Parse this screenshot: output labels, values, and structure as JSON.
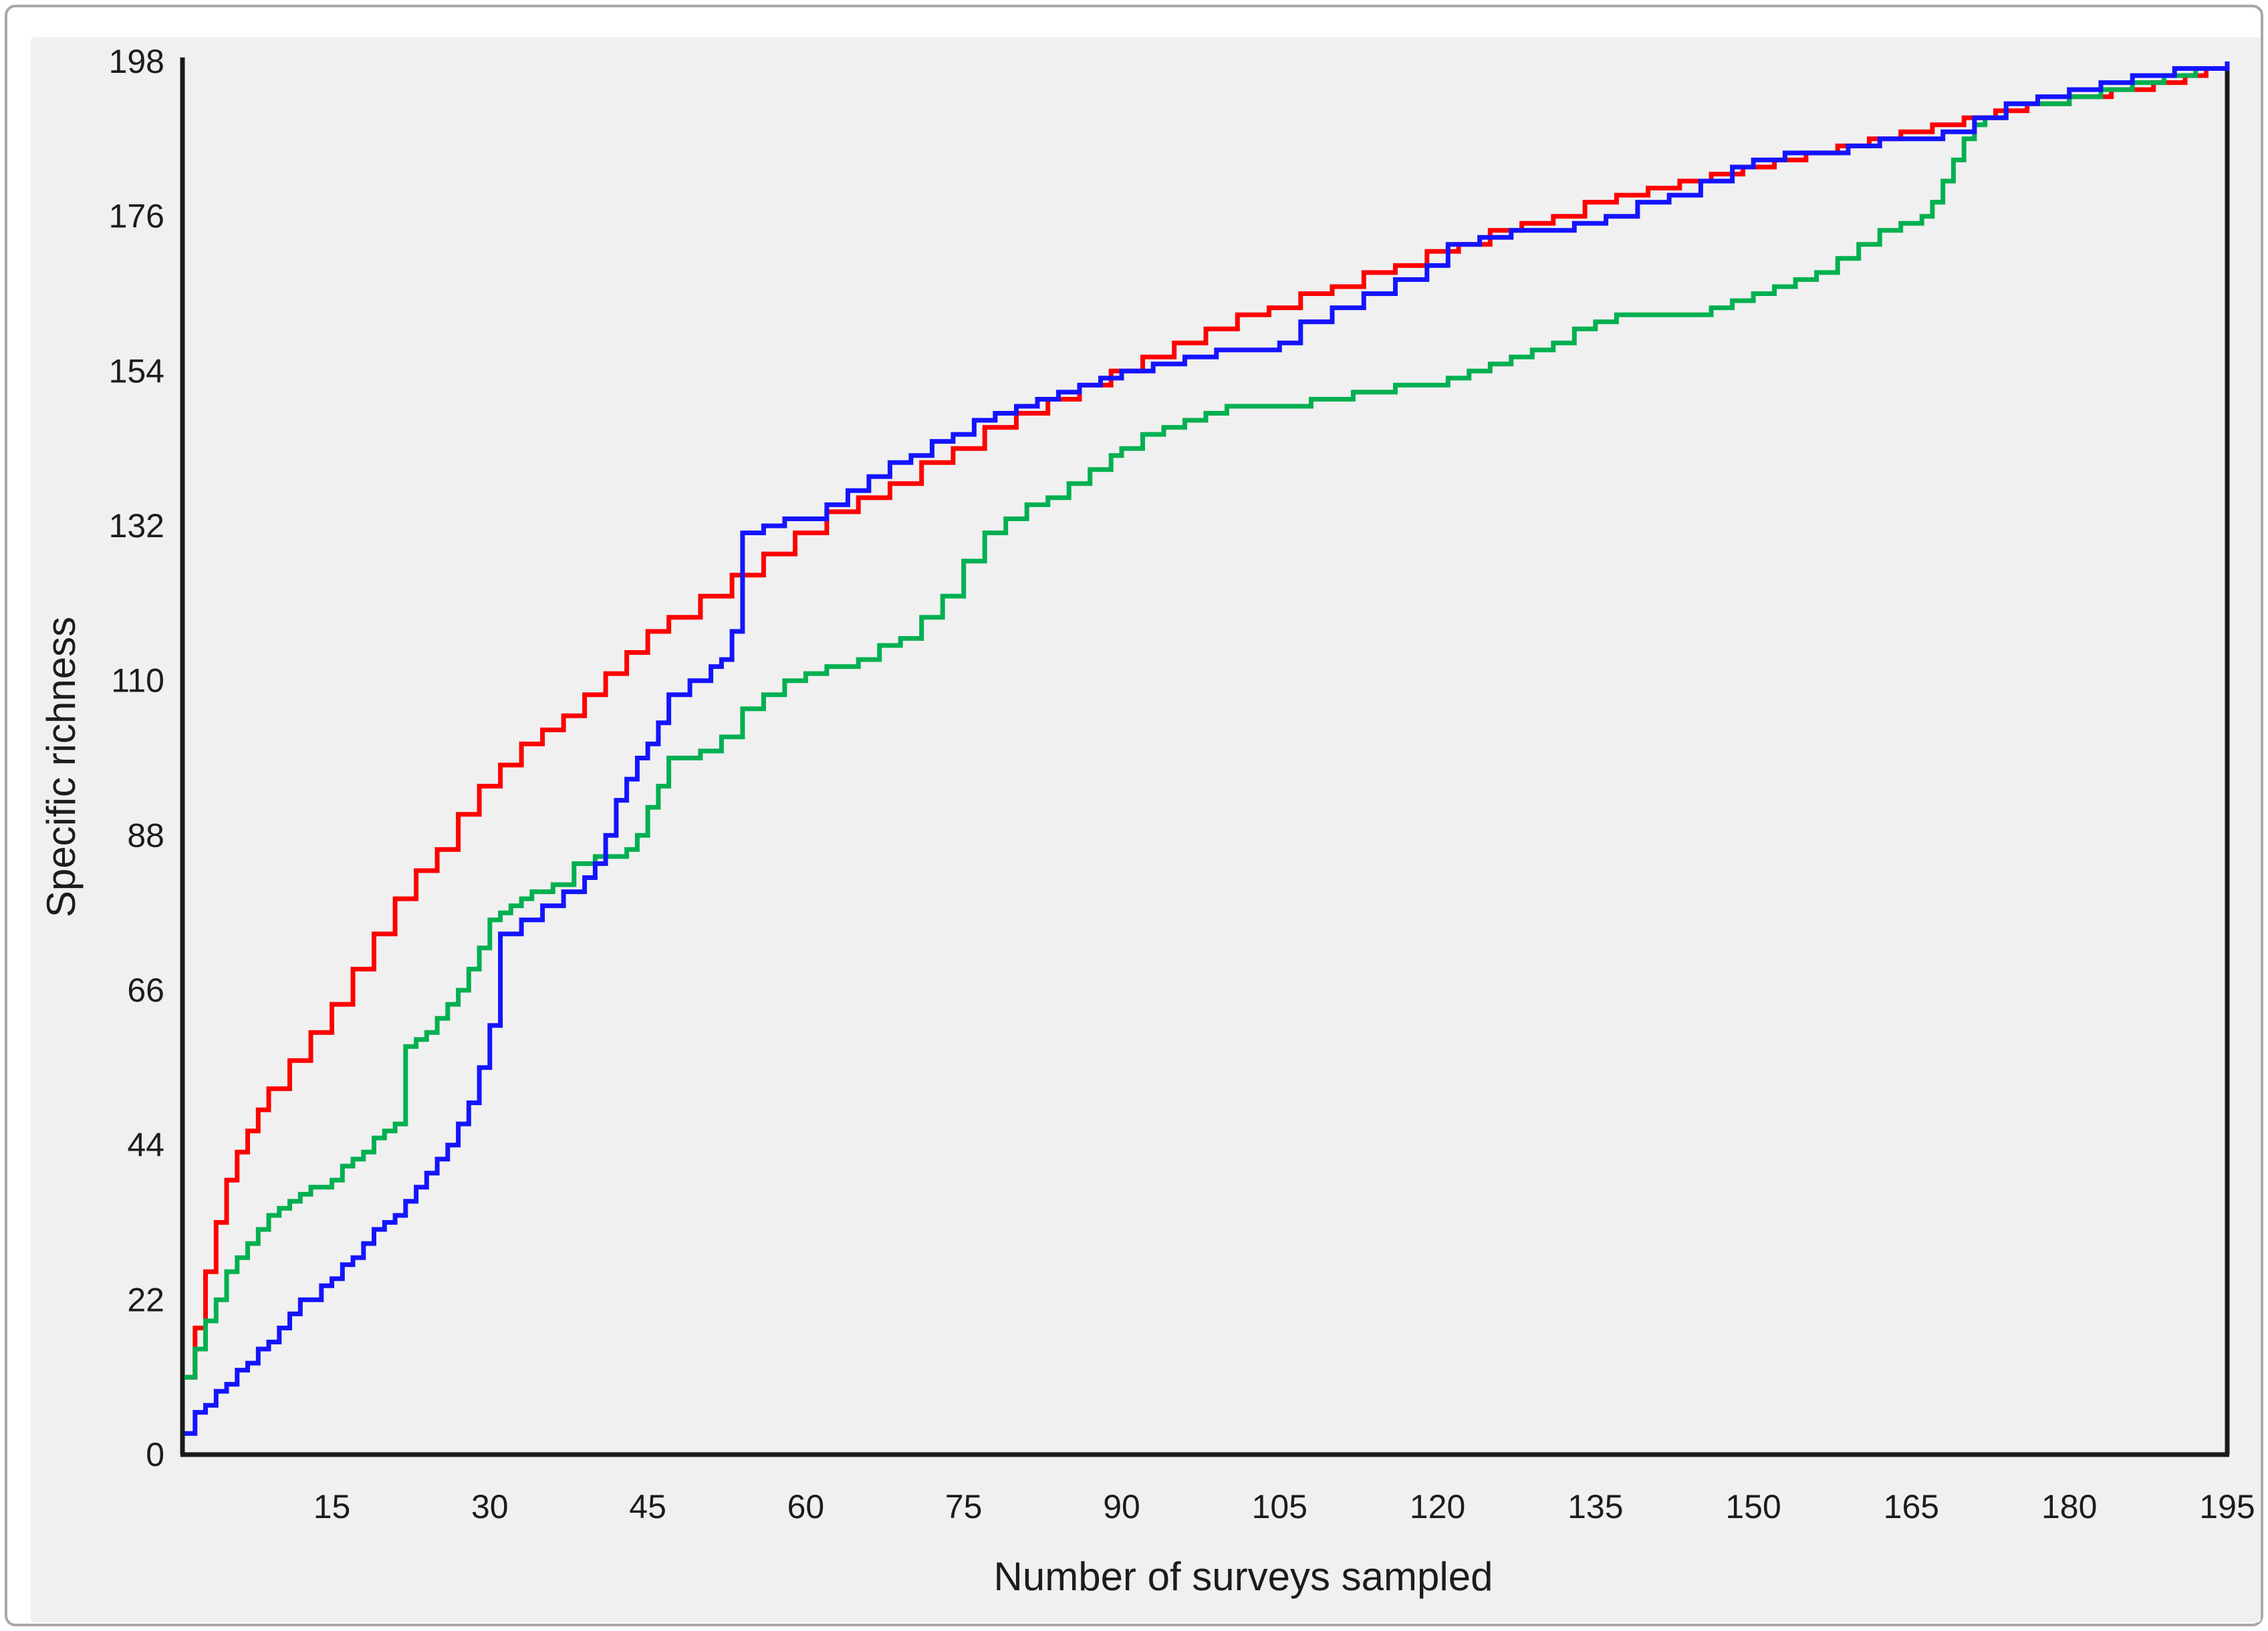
{
  "page": {
    "background": "#ffffff",
    "panel_background": "#f0f0f0",
    "panel_border_color": "#a9a9a9",
    "axis_color": "#1a1a1a",
    "text_color": "#1c1c1c"
  },
  "chart_data": {
    "type": "line",
    "subtype": "step-after",
    "title": "",
    "xlabel": "Number of surveys sampled",
    "ylabel": "Specific richness",
    "xlim": [
      1,
      195
    ],
    "ylim": [
      0,
      198
    ],
    "x_ticks": [
      15,
      30,
      45,
      60,
      75,
      90,
      105,
      120,
      135,
      150,
      165,
      180,
      195
    ],
    "y_ticks": [
      0,
      22,
      44,
      66,
      88,
      110,
      132,
      154,
      176,
      198
    ],
    "grid": false,
    "legend_position": "none",
    "series": [
      {
        "name": "red",
        "color": "#fe0000",
        "points": [
          [
            1,
            11
          ],
          [
            2,
            18
          ],
          [
            3,
            26
          ],
          [
            4,
            33
          ],
          [
            5,
            39
          ],
          [
            6,
            43
          ],
          [
            7,
            46
          ],
          [
            8,
            49
          ],
          [
            9,
            52
          ],
          [
            11,
            56
          ],
          [
            13,
            60
          ],
          [
            15,
            64
          ],
          [
            17,
            69
          ],
          [
            19,
            74
          ],
          [
            21,
            79
          ],
          [
            23,
            83
          ],
          [
            25,
            86
          ],
          [
            27,
            91
          ],
          [
            29,
            95
          ],
          [
            31,
            98
          ],
          [
            33,
            101
          ],
          [
            35,
            103
          ],
          [
            37,
            105
          ],
          [
            39,
            108
          ],
          [
            41,
            111
          ],
          [
            43,
            114
          ],
          [
            45,
            117
          ],
          [
            47,
            119
          ],
          [
            50,
            122
          ],
          [
            53,
            125
          ],
          [
            56,
            128
          ],
          [
            59,
            131
          ],
          [
            62,
            134
          ],
          [
            65,
            136
          ],
          [
            68,
            138
          ],
          [
            71,
            141
          ],
          [
            74,
            143
          ],
          [
            77,
            146
          ],
          [
            80,
            148
          ],
          [
            83,
            150
          ],
          [
            86,
            152
          ],
          [
            89,
            154
          ],
          [
            92,
            156
          ],
          [
            95,
            158
          ],
          [
            98,
            160
          ],
          [
            101,
            162
          ],
          [
            104,
            163
          ],
          [
            107,
            165
          ],
          [
            110,
            166
          ],
          [
            113,
            168
          ],
          [
            116,
            169
          ],
          [
            119,
            171
          ],
          [
            122,
            172
          ],
          [
            125,
            174
          ],
          [
            128,
            175
          ],
          [
            131,
            176
          ],
          [
            134,
            178
          ],
          [
            137,
            179
          ],
          [
            140,
            180
          ],
          [
            143,
            181
          ],
          [
            146,
            182
          ],
          [
            149,
            183
          ],
          [
            152,
            184
          ],
          [
            155,
            185
          ],
          [
            158,
            186
          ],
          [
            161,
            187
          ],
          [
            164,
            188
          ],
          [
            167,
            189
          ],
          [
            170,
            190
          ],
          [
            173,
            191
          ],
          [
            176,
            192
          ],
          [
            180,
            193
          ],
          [
            184,
            194
          ],
          [
            188,
            195
          ],
          [
            191,
            196
          ],
          [
            193,
            197
          ],
          [
            195,
            198
          ]
        ]
      },
      {
        "name": "green",
        "color": "#00b050",
        "points": [
          [
            1,
            11
          ],
          [
            2,
            15
          ],
          [
            3,
            19
          ],
          [
            4,
            22
          ],
          [
            5,
            26
          ],
          [
            6,
            28
          ],
          [
            7,
            30
          ],
          [
            8,
            32
          ],
          [
            9,
            34
          ],
          [
            10,
            35
          ],
          [
            11,
            36
          ],
          [
            12,
            37
          ],
          [
            13,
            38
          ],
          [
            15,
            39
          ],
          [
            16,
            41
          ],
          [
            17,
            42
          ],
          [
            18,
            43
          ],
          [
            19,
            45
          ],
          [
            20,
            46
          ],
          [
            21,
            47
          ],
          [
            22,
            58
          ],
          [
            23,
            59
          ],
          [
            24,
            60
          ],
          [
            25,
            62
          ],
          [
            26,
            64
          ],
          [
            27,
            66
          ],
          [
            28,
            69
          ],
          [
            29,
            72
          ],
          [
            30,
            76
          ],
          [
            31,
            77
          ],
          [
            32,
            78
          ],
          [
            33,
            79
          ],
          [
            34,
            80
          ],
          [
            36,
            81
          ],
          [
            38,
            84
          ],
          [
            40,
            85
          ],
          [
            43,
            86
          ],
          [
            44,
            88
          ],
          [
            45,
            92
          ],
          [
            46,
            95
          ],
          [
            47,
            99
          ],
          [
            50,
            100
          ],
          [
            52,
            102
          ],
          [
            54,
            106
          ],
          [
            56,
            108
          ],
          [
            58,
            110
          ],
          [
            60,
            111
          ],
          [
            62,
            112
          ],
          [
            65,
            113
          ],
          [
            67,
            115
          ],
          [
            69,
            116
          ],
          [
            71,
            119
          ],
          [
            73,
            122
          ],
          [
            75,
            127
          ],
          [
            77,
            131
          ],
          [
            79,
            133
          ],
          [
            81,
            135
          ],
          [
            83,
            136
          ],
          [
            85,
            138
          ],
          [
            87,
            140
          ],
          [
            89,
            142
          ],
          [
            90,
            143
          ],
          [
            92,
            145
          ],
          [
            94,
            146
          ],
          [
            96,
            147
          ],
          [
            98,
            148
          ],
          [
            100,
            149
          ],
          [
            104,
            149
          ],
          [
            108,
            150
          ],
          [
            112,
            151
          ],
          [
            116,
            152
          ],
          [
            119,
            152
          ],
          [
            121,
            153
          ],
          [
            123,
            154
          ],
          [
            125,
            155
          ],
          [
            127,
            156
          ],
          [
            129,
            157
          ],
          [
            131,
            158
          ],
          [
            133,
            160
          ],
          [
            135,
            161
          ],
          [
            137,
            162
          ],
          [
            142,
            162
          ],
          [
            146,
            163
          ],
          [
            148,
            164
          ],
          [
            150,
            165
          ],
          [
            152,
            166
          ],
          [
            154,
            167
          ],
          [
            156,
            168
          ],
          [
            158,
            170
          ],
          [
            160,
            172
          ],
          [
            162,
            174
          ],
          [
            164,
            175
          ],
          [
            166,
            176
          ],
          [
            167,
            178
          ],
          [
            168,
            181
          ],
          [
            169,
            184
          ],
          [
            170,
            187
          ],
          [
            171,
            189
          ],
          [
            172,
            190
          ],
          [
            174,
            192
          ],
          [
            177,
            192
          ],
          [
            180,
            193
          ],
          [
            183,
            194
          ],
          [
            186,
            195
          ],
          [
            189,
            196
          ],
          [
            192,
            197
          ],
          [
            195,
            198
          ]
        ]
      },
      {
        "name": "blue",
        "color": "#1414ff",
        "points": [
          [
            1,
            3
          ],
          [
            2,
            6
          ],
          [
            3,
            7
          ],
          [
            4,
            9
          ],
          [
            5,
            10
          ],
          [
            6,
            12
          ],
          [
            7,
            13
          ],
          [
            8,
            15
          ],
          [
            9,
            16
          ],
          [
            10,
            18
          ],
          [
            11,
            20
          ],
          [
            12,
            22
          ],
          [
            14,
            24
          ],
          [
            15,
            25
          ],
          [
            16,
            27
          ],
          [
            17,
            28
          ],
          [
            18,
            30
          ],
          [
            19,
            32
          ],
          [
            20,
            33
          ],
          [
            21,
            34
          ],
          [
            22,
            36
          ],
          [
            23,
            38
          ],
          [
            24,
            40
          ],
          [
            25,
            42
          ],
          [
            26,
            44
          ],
          [
            27,
            47
          ],
          [
            28,
            50
          ],
          [
            29,
            55
          ],
          [
            30,
            61
          ],
          [
            31,
            74
          ],
          [
            33,
            76
          ],
          [
            35,
            78
          ],
          [
            37,
            80
          ],
          [
            39,
            82
          ],
          [
            40,
            84
          ],
          [
            41,
            88
          ],
          [
            42,
            93
          ],
          [
            43,
            96
          ],
          [
            44,
            99
          ],
          [
            45,
            101
          ],
          [
            46,
            104
          ],
          [
            47,
            108
          ],
          [
            49,
            110
          ],
          [
            51,
            112
          ],
          [
            52,
            113
          ],
          [
            53,
            117
          ],
          [
            54,
            131
          ],
          [
            56,
            132
          ],
          [
            58,
            133
          ],
          [
            60,
            133
          ],
          [
            62,
            135
          ],
          [
            64,
            137
          ],
          [
            66,
            139
          ],
          [
            68,
            141
          ],
          [
            70,
            142
          ],
          [
            72,
            144
          ],
          [
            74,
            145
          ],
          [
            76,
            147
          ],
          [
            78,
            148
          ],
          [
            80,
            149
          ],
          [
            82,
            150
          ],
          [
            84,
            151
          ],
          [
            86,
            152
          ],
          [
            88,
            153
          ],
          [
            90,
            154
          ],
          [
            93,
            155
          ],
          [
            96,
            156
          ],
          [
            99,
            157
          ],
          [
            102,
            157
          ],
          [
            105,
            158
          ],
          [
            107,
            161
          ],
          [
            110,
            163
          ],
          [
            113,
            165
          ],
          [
            116,
            167
          ],
          [
            119,
            169
          ],
          [
            121,
            172
          ],
          [
            124,
            173
          ],
          [
            127,
            174
          ],
          [
            130,
            174
          ],
          [
            133,
            175
          ],
          [
            136,
            176
          ],
          [
            139,
            178
          ],
          [
            142,
            179
          ],
          [
            145,
            181
          ],
          [
            148,
            183
          ],
          [
            150,
            184
          ],
          [
            153,
            185
          ],
          [
            156,
            185
          ],
          [
            159,
            186
          ],
          [
            162,
            187
          ],
          [
            165,
            187
          ],
          [
            168,
            188
          ],
          [
            171,
            190
          ],
          [
            174,
            192
          ],
          [
            177,
            193
          ],
          [
            180,
            194
          ],
          [
            183,
            195
          ],
          [
            186,
            196
          ],
          [
            190,
            197
          ],
          [
            195,
            198
          ]
        ]
      }
    ]
  }
}
